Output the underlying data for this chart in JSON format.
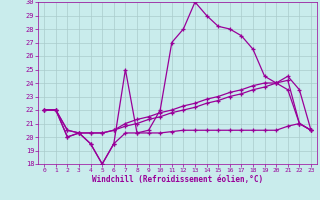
{
  "xlabel": "Windchill (Refroidissement éolien,°C)",
  "xlim_min": -0.5,
  "xlim_max": 23.5,
  "ylim_min": 18,
  "ylim_max": 30,
  "xticks": [
    0,
    1,
    2,
    3,
    4,
    5,
    6,
    7,
    8,
    9,
    10,
    11,
    12,
    13,
    14,
    15,
    16,
    17,
    18,
    19,
    20,
    21,
    22,
    23
  ],
  "yticks": [
    18,
    19,
    20,
    21,
    22,
    23,
    24,
    25,
    26,
    27,
    28,
    29,
    30
  ],
  "background_color": "#c9ecec",
  "line_color": "#990099",
  "grid_color": "#aacccc",
  "line1": [
    22,
    22,
    20,
    20.3,
    19.5,
    18,
    19.5,
    25,
    20.3,
    20.5,
    22,
    27,
    28,
    30,
    29,
    28.2,
    28,
    27.5,
    26.5,
    24.5,
    24,
    23.5,
    21,
    20.5
  ],
  "line2": [
    22,
    22,
    20,
    20.3,
    19.5,
    18,
    19.5,
    20.3,
    20.3,
    20.3,
    20.3,
    20.4,
    20.5,
    20.5,
    20.5,
    20.5,
    20.5,
    20.5,
    20.5,
    20.5,
    20.5,
    20.8,
    21.0,
    20.5
  ],
  "line3": [
    22,
    22,
    20.5,
    20.3,
    20.3,
    20.3,
    20.5,
    21.0,
    21.3,
    21.5,
    21.8,
    22.0,
    22.3,
    22.5,
    22.8,
    23.0,
    23.3,
    23.5,
    23.8,
    24.0,
    24.0,
    24.5,
    23.5,
    20.5
  ],
  "line4": [
    22,
    22,
    20.5,
    20.3,
    20.3,
    20.3,
    20.5,
    20.8,
    21.0,
    21.3,
    21.5,
    21.8,
    22.0,
    22.2,
    22.5,
    22.7,
    23.0,
    23.2,
    23.5,
    23.7,
    24.0,
    24.2,
    21.0,
    20.5
  ]
}
